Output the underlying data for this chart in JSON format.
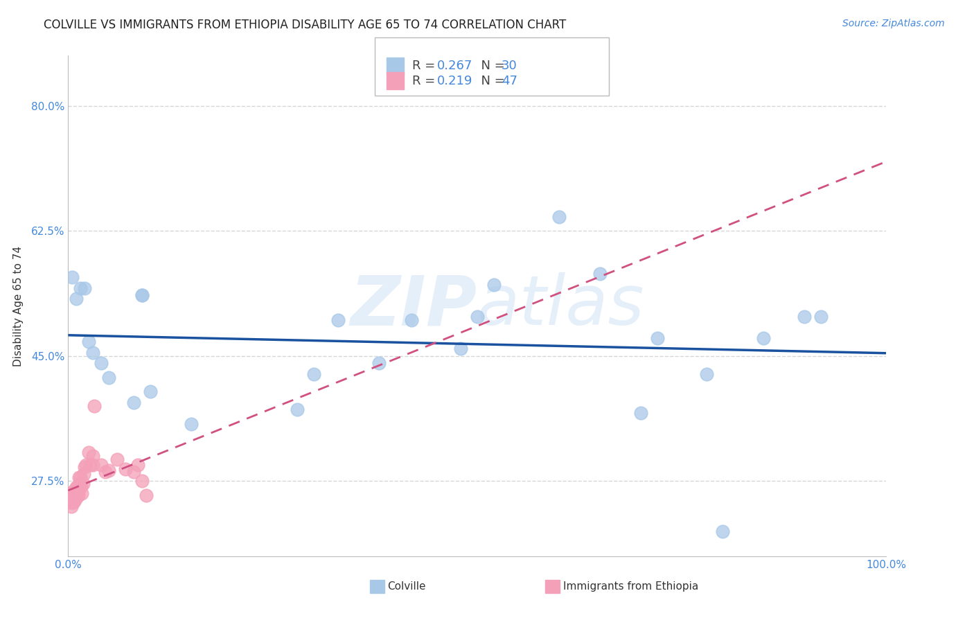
{
  "title": "COLVILLE VS IMMIGRANTS FROM ETHIOPIA DISABILITY AGE 65 TO 74 CORRELATION CHART",
  "source": "Source: ZipAtlas.com",
  "ylabel_label": "Disability Age 65 to 74",
  "xlabel_label_left": "Colville",
  "xlabel_label_right": "Immigrants from Ethiopia",
  "watermark": "ZIPatlas",
  "colville_color": "#a8c8e8",
  "ethiopia_color": "#f4a0b8",
  "colville_line_color": "#1a52a0",
  "ethiopia_line_color": "#d05080",
  "colville_R": 0.267,
  "colville_N": 30,
  "ethiopia_R": 0.219,
  "ethiopia_N": 47,
  "xlim": [
    0.0,
    1.0
  ],
  "ylim": [
    0.17,
    0.87
  ],
  "ytick_vals": [
    0.275,
    0.45,
    0.625,
    0.8
  ],
  "ytick_labels": [
    "27.5%",
    "45.0%",
    "62.5%",
    "80.0%"
  ],
  "xtick_vals": [
    0.0,
    1.0
  ],
  "xtick_labels": [
    "0.0%",
    "100.0%"
  ],
  "colville_x": [
    0.005,
    0.01,
    0.015,
    0.02,
    0.025,
    0.03,
    0.04,
    0.05,
    0.08,
    0.09,
    0.09,
    0.1,
    0.15,
    0.28,
    0.3,
    0.33,
    0.38,
    0.42,
    0.48,
    0.5,
    0.52,
    0.6,
    0.65,
    0.7,
    0.72,
    0.78,
    0.8,
    0.85,
    0.9,
    0.92
  ],
  "colville_y": [
    0.56,
    0.53,
    0.545,
    0.545,
    0.47,
    0.455,
    0.44,
    0.42,
    0.385,
    0.535,
    0.535,
    0.4,
    0.355,
    0.375,
    0.425,
    0.5,
    0.44,
    0.5,
    0.46,
    0.505,
    0.55,
    0.645,
    0.565,
    0.37,
    0.475,
    0.425,
    0.205,
    0.475,
    0.505,
    0.505
  ],
  "ethiopia_x": [
    0.002,
    0.003,
    0.003,
    0.004,
    0.004,
    0.005,
    0.005,
    0.005,
    0.006,
    0.006,
    0.007,
    0.007,
    0.008,
    0.008,
    0.008,
    0.009,
    0.009,
    0.01,
    0.01,
    0.011,
    0.011,
    0.012,
    0.012,
    0.013,
    0.013,
    0.014,
    0.015,
    0.016,
    0.017,
    0.018,
    0.019,
    0.02,
    0.022,
    0.025,
    0.027,
    0.03,
    0.03,
    0.032,
    0.04,
    0.045,
    0.05,
    0.06,
    0.07,
    0.08,
    0.085,
    0.09,
    0.095
  ],
  "ethiopia_y": [
    0.245,
    0.25,
    0.255,
    0.258,
    0.24,
    0.245,
    0.25,
    0.26,
    0.245,
    0.255,
    0.25,
    0.258,
    0.252,
    0.248,
    0.262,
    0.255,
    0.265,
    0.252,
    0.262,
    0.258,
    0.268,
    0.26,
    0.255,
    0.27,
    0.28,
    0.272,
    0.28,
    0.268,
    0.258,
    0.272,
    0.285,
    0.295,
    0.298,
    0.315,
    0.298,
    0.298,
    0.31,
    0.38,
    0.298,
    0.288,
    0.29,
    0.305,
    0.292,
    0.288,
    0.298,
    0.275,
    0.255
  ],
  "title_fontsize": 12,
  "source_fontsize": 10,
  "axis_label_fontsize": 11,
  "tick_fontsize": 11,
  "legend_fontsize": 13,
  "background_color": "#ffffff",
  "grid_color": "#cccccc",
  "tick_color": "#4488dd"
}
